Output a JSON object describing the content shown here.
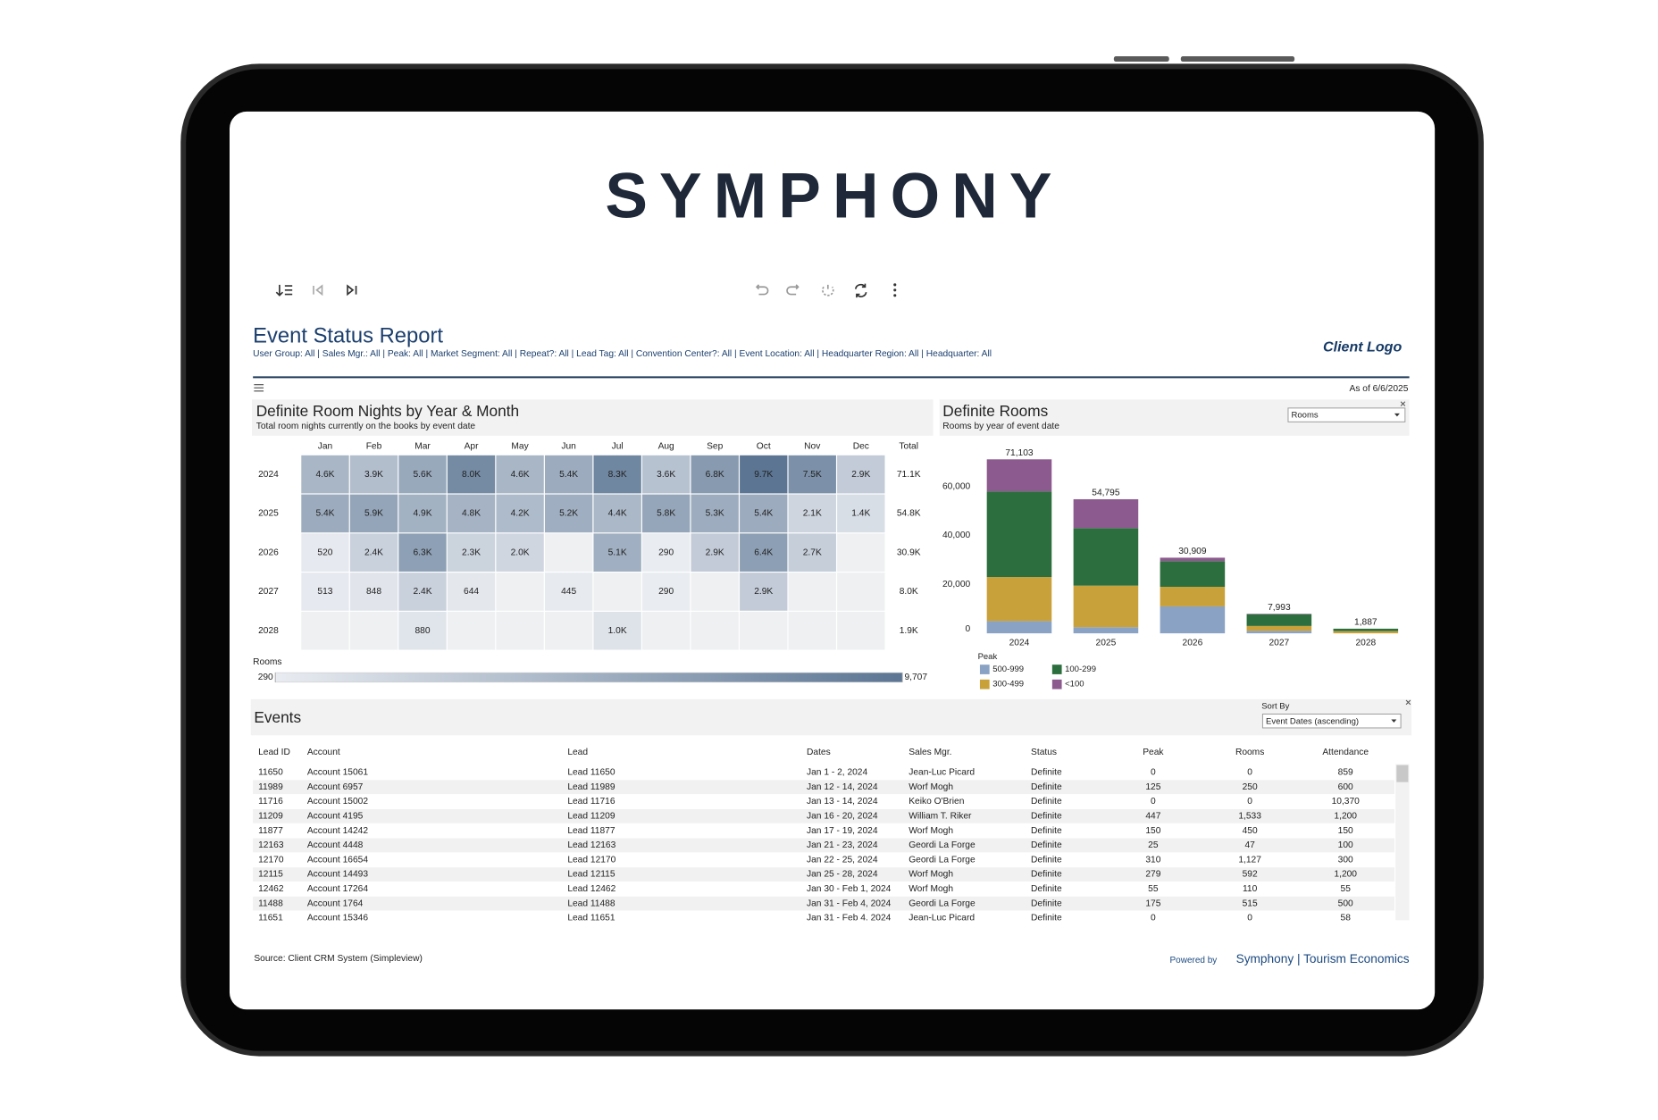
{
  "header": {
    "logo": "SYMPHONY"
  },
  "report": {
    "title": "Event Status Report",
    "filters": "User Group: All | Sales Mgr.: All | Peak: All | Market Segment: All | Repeat?: All | Lead Tag: All | Convention Center?: All | Event Location: All | Headquarter Region: All | Headquarter: All",
    "client_logo": "Client Logo",
    "as_of": "As of 6/6/2025"
  },
  "chart_data": [
    {
      "type": "heatmap",
      "title": "Definite Room Nights by Year & Month",
      "subtitle": "Total room nights currently on the books by event date",
      "x": [
        "Jan",
        "Feb",
        "Mar",
        "Apr",
        "May",
        "Jun",
        "Jul",
        "Aug",
        "Sep",
        "Oct",
        "Nov",
        "Dec"
      ],
      "y": [
        "2024",
        "2025",
        "2026",
        "2027",
        "2028"
      ],
      "z": [
        [
          4600,
          3900,
          5600,
          8000,
          4600,
          5400,
          8300,
          3600,
          6800,
          9700,
          7500,
          2900
        ],
        [
          5400,
          5900,
          4900,
          4800,
          4200,
          5200,
          4400,
          5800,
          5300,
          5400,
          2100,
          1400
        ],
        [
          520,
          2400,
          6300,
          2300,
          2000,
          null,
          5100,
          290,
          2900,
          6400,
          2700,
          null
        ],
        [
          513,
          848,
          2400,
          644,
          null,
          445,
          null,
          290,
          null,
          2900,
          null,
          null
        ],
        [
          null,
          null,
          880,
          null,
          null,
          null,
          1000,
          null,
          null,
          null,
          null,
          null
        ]
      ],
      "value_labels": [
        [
          "4.6K",
          "3.9K",
          "5.6K",
          "8.0K",
          "4.6K",
          "5.4K",
          "8.3K",
          "3.6K",
          "6.8K",
          "9.7K",
          "7.5K",
          "2.9K"
        ],
        [
          "5.4K",
          "5.9K",
          "4.9K",
          "4.8K",
          "4.2K",
          "5.2K",
          "4.4K",
          "5.8K",
          "5.3K",
          "5.4K",
          "2.1K",
          "1.4K"
        ],
        [
          "520",
          "2.4K",
          "6.3K",
          "2.3K",
          "2.0K",
          null,
          "5.1K",
          "290",
          "2.9K",
          "6.4K",
          "2.7K",
          null
        ],
        [
          "513",
          "848",
          "2.4K",
          "644",
          null,
          "445",
          null,
          "290",
          null,
          "2.9K",
          null,
          null
        ],
        [
          null,
          null,
          "880",
          null,
          null,
          null,
          "1.0K",
          null,
          null,
          null,
          null,
          null
        ]
      ],
      "total_label": "Total",
      "totals": [
        71100,
        54800,
        30900,
        8000,
        1900
      ],
      "totals_labels": [
        "71.1K",
        "54.8K",
        "30.9K",
        "8.0K",
        "1.9K"
      ],
      "colorbar_title": "Rooms",
      "zlim": [
        290,
        9707
      ],
      "zticks": [
        290,
        {
          "value": 9707,
          "label": "9,707"
        }
      ],
      "colorscale": [
        "#e9ecf1",
        "#5b7593"
      ]
    },
    {
      "type": "stacked_bar",
      "title": "Definite Rooms",
      "subtitle": "Rooms by year of event date",
      "dropdown": "Rooms",
      "categories": [
        "2024",
        "2025",
        "2026",
        "2027",
        "2028"
      ],
      "legend_title": "Peak",
      "series": [
        {
          "name": "500-999",
          "color": "#8aa2c4",
          "values": [
            5000,
            2500,
            11000,
            1000,
            0
          ]
        },
        {
          "name": "300-499",
          "color": "#c9a13a",
          "values": [
            18000,
            17000,
            8000,
            2000,
            900
          ]
        },
        {
          "name": "100-299",
          "color": "#2c6e3d",
          "values": [
            35000,
            23500,
            10500,
            4800,
            987
          ]
        },
        {
          "name": "<100",
          "color": "#8c5a8e",
          "values": [
            13103,
            11795,
            1409,
            193,
            0
          ]
        }
      ],
      "totals": [
        71103,
        54795,
        30909,
        7993,
        1887
      ],
      "totals_labels": [
        "71,103",
        "54,795",
        "30,909",
        "7,993",
        "1,887"
      ],
      "ylim": [
        0,
        76000
      ],
      "yticks": [
        0,
        {
          "value": 20000,
          "label": "20,000"
        },
        {
          "value": 40000,
          "label": "40,000"
        },
        {
          "value": 60000,
          "label": "60,000"
        }
      ]
    }
  ],
  "events": {
    "title": "Events",
    "sort_label": "Sort By",
    "sort_value": "Event Dates (ascending)",
    "columns": [
      "Lead ID",
      "Account",
      "Lead",
      "Dates",
      "Sales Mgr.",
      "Status",
      "Peak",
      "Rooms",
      "Attendance"
    ],
    "rows": [
      [
        "11650",
        "Account 15061",
        "Lead 11650",
        "Jan 1 - 2, 2024",
        "Jean-Luc Picard",
        "Definite",
        "0",
        "0",
        "859"
      ],
      [
        "11989",
        "Account 6957",
        "Lead 11989",
        "Jan 12 - 14, 2024",
        "Worf Mogh",
        "Definite",
        "125",
        "250",
        "600"
      ],
      [
        "11716",
        "Account 15002",
        "Lead 11716",
        "Jan 13 - 14, 2024",
        "Keiko O'Brien",
        "Definite",
        "0",
        "0",
        "10,370"
      ],
      [
        "11209",
        "Account 4195",
        "Lead 11209",
        "Jan 16 - 20, 2024",
        "William T. Riker",
        "Definite",
        "447",
        "1,533",
        "1,200"
      ],
      [
        "11877",
        "Account 14242",
        "Lead 11877",
        "Jan 17 - 19, 2024",
        "Worf Mogh",
        "Definite",
        "150",
        "450",
        "150"
      ],
      [
        "12163",
        "Account 4448",
        "Lead 12163",
        "Jan 21 - 23, 2024",
        "Geordi La Forge",
        "Definite",
        "25",
        "47",
        "100"
      ],
      [
        "12170",
        "Account 16654",
        "Lead 12170",
        "Jan 22 - 25, 2024",
        "Geordi La Forge",
        "Definite",
        "310",
        "1,127",
        "300"
      ],
      [
        "12115",
        "Account 14493",
        "Lead 12115",
        "Jan 25 - 28, 2024",
        "Worf Mogh",
        "Definite",
        "279",
        "592",
        "1,200"
      ],
      [
        "12462",
        "Account 17264",
        "Lead 12462",
        "Jan 30 - Feb 1, 2024",
        "Worf Mogh",
        "Definite",
        "55",
        "110",
        "55"
      ],
      [
        "11488",
        "Account 1764",
        "Lead 11488",
        "Jan 31 - Feb 4, 2024",
        "Geordi La Forge",
        "Definite",
        "175",
        "515",
        "500"
      ],
      [
        "11651",
        "Account 15346",
        "Lead 11651",
        "Jan 31 - Feb 4, 2024",
        "Jean-Luc Picard",
        "Definite",
        "0",
        "0",
        "58"
      ]
    ]
  },
  "footer": {
    "source": "Source: Client CRM System (Simpleview)",
    "powered_by": "Powered by",
    "brand": "Symphony | Tourism Economics"
  }
}
